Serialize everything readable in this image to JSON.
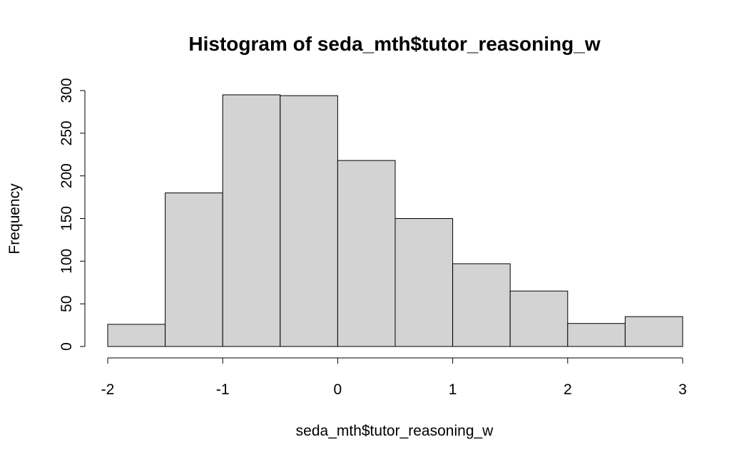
{
  "chart_data": {
    "type": "bar",
    "title": "Histogram of seda_mth$tutor_reasoning_w",
    "xlabel": "seda_mth$tutor_reasoning_w",
    "ylabel": "Frequency",
    "bins": [
      {
        "start": -2.0,
        "end": -1.5,
        "count": 26
      },
      {
        "start": -1.5,
        "end": -1.0,
        "count": 180
      },
      {
        "start": -1.0,
        "end": -0.5,
        "count": 295
      },
      {
        "start": -0.5,
        "end": 0.0,
        "count": 294
      },
      {
        "start": 0.0,
        "end": 0.5,
        "count": 218
      },
      {
        "start": 0.5,
        "end": 1.0,
        "count": 150
      },
      {
        "start": 1.0,
        "end": 1.5,
        "count": 97
      },
      {
        "start": 1.5,
        "end": 2.0,
        "count": 65
      },
      {
        "start": 2.0,
        "end": 2.5,
        "count": 27
      },
      {
        "start": 2.5,
        "end": 3.0,
        "count": 35
      }
    ],
    "xticks": [
      -2,
      -1,
      0,
      1,
      2,
      3
    ],
    "yticks": [
      0,
      50,
      100,
      150,
      200,
      250,
      300
    ],
    "xlim": [
      -2,
      3
    ],
    "ylim": [
      0,
      300
    ],
    "bar_color": "#d3d3d3",
    "grid": false,
    "legend": "none"
  }
}
